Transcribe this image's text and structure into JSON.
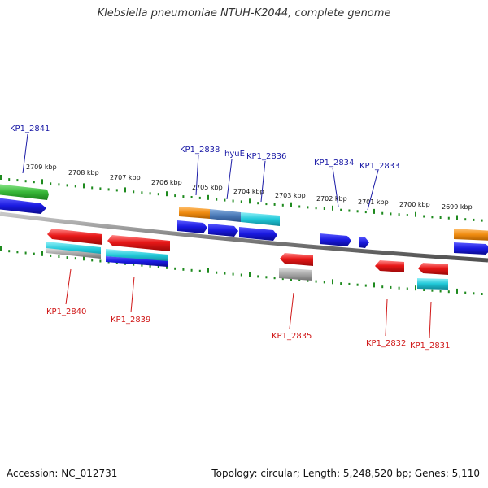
{
  "title": "Klebsiella pneumoniae NTUH-K2044, complete genome",
  "accession": "Accession: NC_012731",
  "summary": "Topology: circular; Length: 5,248,520 bp; Genes: 5,110",
  "colors": {
    "backbone": "#8a8a8a",
    "tick": "#1e8a1e",
    "label_forward": "#1a1aa6",
    "label_reverse": "#d01818",
    "gene_blue": "#1a1ae0",
    "gene_red": "#e81818",
    "gene_orange": "#f08c10",
    "gene_cyan": "#20c8d8",
    "gene_steel": "#4a7ab8",
    "gene_green": "#38b838",
    "gene_gray": "#a8a8a8"
  },
  "scale": {
    "ticks": [
      "2709 kbp",
      "2708 kbp",
      "2707 kbp",
      "2706 kbp",
      "2705 kbp",
      "2704 kbp",
      "2703 kbp",
      "2702 kbp",
      "2701 kbp",
      "2700 kbp",
      "2699 kbp"
    ]
  },
  "labels": {
    "forward": [
      "KP1_2841",
      "KP1_2838",
      "hyuE",
      "KP1_2836",
      "KP1_2834",
      "KP1_2833"
    ],
    "reverse": [
      "KP1_2840",
      "KP1_2839",
      "KP1_2835",
      "KP1_2832",
      "KP1_2831"
    ]
  }
}
